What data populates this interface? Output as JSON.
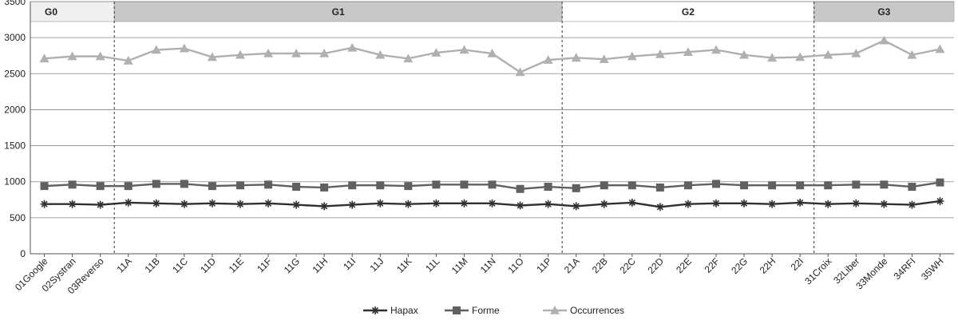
{
  "chart_data": {
    "type": "line",
    "title": "",
    "xlabel": "",
    "ylabel": "",
    "ylim": [
      0,
      3500
    ],
    "yticks": [
      0,
      500,
      1000,
      1500,
      2000,
      2500,
      3000,
      3500
    ],
    "grid": true,
    "legend": "bottom",
    "categories": [
      "01Google",
      "02Systran",
      "03Reverso",
      "11A",
      "11B",
      "11C",
      "11D",
      "11E",
      "11F",
      "11G",
      "11H",
      "11I",
      "11J",
      "11K",
      "11L",
      "11M",
      "11N",
      "11O",
      "11P",
      "21A",
      "22B",
      "22C",
      "22D",
      "22E",
      "22F",
      "22G",
      "22H",
      "22I",
      "31Croix",
      "32Liber",
      "33Monde",
      "34RFI",
      "35WH"
    ],
    "groups": [
      {
        "label": "G0",
        "start": "01Google",
        "end": "03Reverso",
        "color": "#f0f0f0"
      },
      {
        "label": "G1",
        "start": "11A",
        "end": "11P",
        "color": "#c8c8c8"
      },
      {
        "label": "G2",
        "start": "21A",
        "end": "22I",
        "color": "#ffffff"
      },
      {
        "label": "G3",
        "start": "31Croix",
        "end": "35WH",
        "color": "#c8c8c8"
      }
    ],
    "series": [
      {
        "name": "Hapax",
        "color": "#303030",
        "marker": "star",
        "values": [
          690,
          690,
          680,
          710,
          700,
          690,
          700,
          690,
          700,
          680,
          660,
          680,
          700,
          690,
          700,
          700,
          700,
          670,
          690,
          660,
          690,
          710,
          650,
          690,
          700,
          700,
          690,
          710,
          690,
          700,
          690,
          680,
          730
        ]
      },
      {
        "name": "Forme",
        "color": "#606060",
        "marker": "square",
        "values": [
          940,
          960,
          940,
          940,
          970,
          970,
          940,
          950,
          960,
          930,
          920,
          950,
          950,
          940,
          960,
          960,
          960,
          900,
          930,
          910,
          950,
          950,
          920,
          950,
          970,
          950,
          950,
          950,
          950,
          960,
          960,
          930,
          990
        ]
      },
      {
        "name": "Occurrences",
        "color": "#b0b0b0",
        "marker": "triangle",
        "values": [
          2710,
          2740,
          2740,
          2680,
          2830,
          2850,
          2730,
          2760,
          2780,
          2780,
          2780,
          2860,
          2760,
          2710,
          2790,
          2830,
          2780,
          2520,
          2690,
          2720,
          2700,
          2740,
          2770,
          2800,
          2830,
          2760,
          2720,
          2730,
          2760,
          2780,
          2960,
          2760,
          2840
        ]
      }
    ]
  }
}
